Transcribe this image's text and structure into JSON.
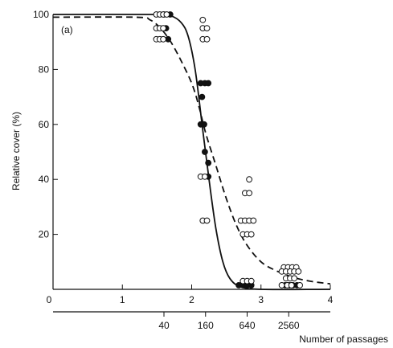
{
  "chart_data": {
    "type": "scatter",
    "panel_label": "(a)",
    "ylabel": "Relative cover (%)",
    "xlabel": "Number of passages",
    "xlim": [
      0,
      4
    ],
    "ylim": [
      0,
      100
    ],
    "x_ticks": [
      {
        "value": 0,
        "label": "0"
      },
      {
        "value": 1,
        "label": "1"
      },
      {
        "value": 2,
        "label": "2"
      },
      {
        "value": 3,
        "label": "3"
      },
      {
        "value": 4,
        "label": "4"
      }
    ],
    "y_ticks": [
      {
        "value": 0,
        "label": ""
      },
      {
        "value": 20,
        "label": "20"
      },
      {
        "value": 40,
        "label": "40"
      },
      {
        "value": 60,
        "label": "60"
      },
      {
        "value": 80,
        "label": "80"
      },
      {
        "value": 100,
        "label": "100"
      }
    ],
    "secondary_x_axis": {
      "label": "Number of passages",
      "ticks": [
        {
          "value": 1.6,
          "label": "40"
        },
        {
          "value": 2.2,
          "label": "160"
        },
        {
          "value": 2.8,
          "label": "640"
        },
        {
          "value": 3.4,
          "label": "2560"
        }
      ]
    },
    "series": [
      {
        "style": "filled",
        "points": [
          {
            "x": 1.6,
            "y": 100
          },
          {
            "x": 1.63,
            "y": 95
          },
          {
            "x": 1.66,
            "y": 91
          },
          {
            "x": 1.69,
            "y": 100
          },
          {
            "x": 2.13,
            "y": 75
          },
          {
            "x": 2.19,
            "y": 75
          },
          {
            "x": 2.24,
            "y": 75
          },
          {
            "x": 2.15,
            "y": 70
          },
          {
            "x": 2.13,
            "y": 60
          },
          {
            "x": 2.18,
            "y": 60
          },
          {
            "x": 2.19,
            "y": 50
          },
          {
            "x": 2.24,
            "y": 46
          },
          {
            "x": 2.24,
            "y": 41
          },
          {
            "x": 2.68,
            "y": 1.5
          },
          {
            "x": 2.74,
            "y": 1.5
          },
          {
            "x": 2.8,
            "y": 1.5
          },
          {
            "x": 2.86,
            "y": 1.5
          },
          {
            "x": 3.35,
            "y": 1.5
          },
          {
            "x": 3.41,
            "y": 1.5
          },
          {
            "x": 3.46,
            "y": 1.5
          },
          {
            "x": 3.52,
            "y": 1.5
          }
        ]
      },
      {
        "style": "open",
        "points": [
          {
            "x": 1.49,
            "y": 100
          },
          {
            "x": 1.54,
            "y": 100
          },
          {
            "x": 1.59,
            "y": 100
          },
          {
            "x": 1.64,
            "y": 100
          },
          {
            "x": 1.49,
            "y": 95
          },
          {
            "x": 1.54,
            "y": 95
          },
          {
            "x": 1.59,
            "y": 95
          },
          {
            "x": 1.49,
            "y": 91
          },
          {
            "x": 1.54,
            "y": 91
          },
          {
            "x": 1.59,
            "y": 91
          },
          {
            "x": 2.16,
            "y": 98
          },
          {
            "x": 2.16,
            "y": 95
          },
          {
            "x": 2.22,
            "y": 95
          },
          {
            "x": 2.16,
            "y": 91
          },
          {
            "x": 2.22,
            "y": 91
          },
          {
            "x": 2.13,
            "y": 41
          },
          {
            "x": 2.19,
            "y": 41
          },
          {
            "x": 2.16,
            "y": 25
          },
          {
            "x": 2.22,
            "y": 25
          },
          {
            "x": 2.83,
            "y": 40
          },
          {
            "x": 2.77,
            "y": 35
          },
          {
            "x": 2.83,
            "y": 35
          },
          {
            "x": 2.71,
            "y": 25
          },
          {
            "x": 2.77,
            "y": 25
          },
          {
            "x": 2.83,
            "y": 25
          },
          {
            "x": 2.89,
            "y": 25
          },
          {
            "x": 2.74,
            "y": 20
          },
          {
            "x": 2.8,
            "y": 20
          },
          {
            "x": 2.86,
            "y": 20
          },
          {
            "x": 2.74,
            "y": 3
          },
          {
            "x": 2.8,
            "y": 3
          },
          {
            "x": 2.86,
            "y": 3
          },
          {
            "x": 3.33,
            "y": 8
          },
          {
            "x": 3.39,
            "y": 8
          },
          {
            "x": 3.45,
            "y": 8
          },
          {
            "x": 3.51,
            "y": 8
          },
          {
            "x": 3.3,
            "y": 6.5
          },
          {
            "x": 3.36,
            "y": 6.5
          },
          {
            "x": 3.42,
            "y": 6.5
          },
          {
            "x": 3.48,
            "y": 6.5
          },
          {
            "x": 3.54,
            "y": 6.5
          },
          {
            "x": 3.36,
            "y": 4
          },
          {
            "x": 3.42,
            "y": 4
          },
          {
            "x": 3.48,
            "y": 4
          },
          {
            "x": 3.3,
            "y": 1.5
          },
          {
            "x": 3.38,
            "y": 1.5
          },
          {
            "x": 3.44,
            "y": 1.5
          },
          {
            "x": 3.56,
            "y": 1.5
          }
        ]
      }
    ],
    "curves": [
      {
        "style": "solid",
        "points": [
          [
            0,
            100
          ],
          [
            1.5,
            100
          ],
          [
            1.7,
            99.5
          ],
          [
            1.85,
            97
          ],
          [
            1.95,
            92
          ],
          [
            2.05,
            80
          ],
          [
            2.15,
            60
          ],
          [
            2.25,
            40
          ],
          [
            2.35,
            22
          ],
          [
            2.45,
            10
          ],
          [
            2.55,
            4
          ],
          [
            2.7,
            1
          ],
          [
            3.0,
            0
          ],
          [
            4.0,
            0
          ]
        ]
      },
      {
        "style": "dashed",
        "points": [
          [
            0,
            99
          ],
          [
            1.2,
            99
          ],
          [
            1.4,
            98
          ],
          [
            1.55,
            95
          ],
          [
            1.7,
            90
          ],
          [
            1.85,
            83
          ],
          [
            2.0,
            75
          ],
          [
            2.1,
            67
          ],
          [
            2.2,
            57
          ],
          [
            2.35,
            45
          ],
          [
            2.5,
            33
          ],
          [
            2.65,
            23
          ],
          [
            2.8,
            16
          ],
          [
            3.0,
            10
          ],
          [
            3.2,
            7
          ],
          [
            3.45,
            4.5
          ],
          [
            3.7,
            3
          ],
          [
            4.0,
            2
          ]
        ]
      }
    ]
  }
}
